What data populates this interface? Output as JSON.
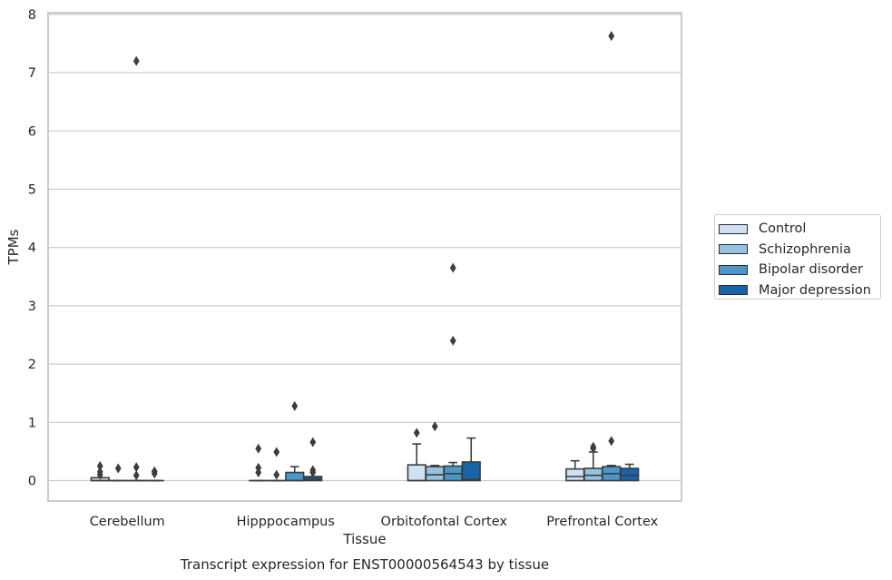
{
  "chart_data": {
    "type": "box",
    "title": "Transcript expression for ENST00000564543 by tissue",
    "xlabel": "Tissue",
    "ylabel": "TPMs",
    "ylim": [
      -0.35,
      8.0
    ],
    "yticks": [
      0,
      1,
      2,
      3,
      4,
      5,
      6,
      7,
      8
    ],
    "grid": true,
    "legend_position": "right",
    "categories": [
      "Cerebellum",
      "Hipppocampus",
      "Orbitofontal Cortex",
      "Prefrontal Cortex"
    ],
    "series": [
      {
        "name": "Control",
        "color": "#d0e1f2",
        "boxes": [
          {
            "q1": 0.0,
            "median": 0.0,
            "q3": 0.05,
            "whisker_low": 0.0,
            "whisker_high": 0.05,
            "outliers": [
              0.25,
              0.15,
              0.1
            ]
          },
          {
            "q1": 0.0,
            "median": 0.0,
            "q3": 0.0,
            "whisker_low": 0.0,
            "whisker_high": 0.0,
            "outliers": [
              0.55,
              0.22,
              0.14
            ]
          },
          {
            "q1": 0.0,
            "median": 0.0,
            "q3": 0.27,
            "whisker_low": 0.0,
            "whisker_high": 0.63,
            "outliers": [
              0.82
            ]
          },
          {
            "q1": 0.0,
            "median": 0.07,
            "q3": 0.2,
            "whisker_low": 0.0,
            "whisker_high": 0.34,
            "outliers": []
          }
        ]
      },
      {
        "name": "Schizophrenia",
        "color": "#94c4df",
        "boxes": [
          {
            "q1": 0.0,
            "median": 0.0,
            "q3": 0.0,
            "whisker_low": 0.0,
            "whisker_high": 0.0,
            "outliers": [
              0.21
            ]
          },
          {
            "q1": 0.0,
            "median": 0.0,
            "q3": 0.0,
            "whisker_low": 0.0,
            "whisker_high": 0.0,
            "outliers": [
              0.49,
              0.1
            ]
          },
          {
            "q1": 0.0,
            "median": 0.1,
            "q3": 0.24,
            "whisker_low": 0.0,
            "whisker_high": 0.26,
            "outliers": [
              0.93
            ]
          },
          {
            "q1": 0.0,
            "median": 0.09,
            "q3": 0.21,
            "whisker_low": 0.0,
            "whisker_high": 0.49,
            "outliers": [
              0.58,
              0.55
            ]
          }
        ]
      },
      {
        "name": "Bipolar disorder",
        "color": "#4a98c9",
        "boxes": [
          {
            "q1": 0.0,
            "median": 0.0,
            "q3": 0.0,
            "whisker_low": 0.0,
            "whisker_high": 0.0,
            "outliers": [
              7.2,
              0.23,
              0.09
            ]
          },
          {
            "q1": 0.0,
            "median": 0.0,
            "q3": 0.14,
            "whisker_low": 0.0,
            "whisker_high": 0.24,
            "outliers": [
              1.28
            ]
          },
          {
            "q1": 0.0,
            "median": 0.12,
            "q3": 0.25,
            "whisker_low": 0.0,
            "whisker_high": 0.31,
            "outliers": [
              3.65,
              2.4
            ]
          },
          {
            "q1": 0.0,
            "median": 0.12,
            "q3": 0.24,
            "whisker_low": 0.0,
            "whisker_high": 0.26,
            "outliers": [
              7.63,
              0.68
            ]
          }
        ]
      },
      {
        "name": "Major depression",
        "color": "#1764ab",
        "boxes": [
          {
            "q1": 0.0,
            "median": 0.0,
            "q3": 0.0,
            "whisker_low": 0.0,
            "whisker_high": 0.0,
            "outliers": [
              0.16,
              0.12
            ]
          },
          {
            "q1": 0.0,
            "median": 0.03,
            "q3": 0.07,
            "whisker_low": 0.0,
            "whisker_high": 0.07,
            "outliers": [
              0.66,
              0.18,
              0.14
            ]
          },
          {
            "q1": 0.0,
            "median": 0.02,
            "q3": 0.32,
            "whisker_low": 0.0,
            "whisker_high": 0.73,
            "outliers": []
          },
          {
            "q1": 0.0,
            "median": 0.09,
            "q3": 0.21,
            "whisker_low": 0.0,
            "whisker_high": 0.28,
            "outliers": []
          }
        ]
      }
    ]
  }
}
